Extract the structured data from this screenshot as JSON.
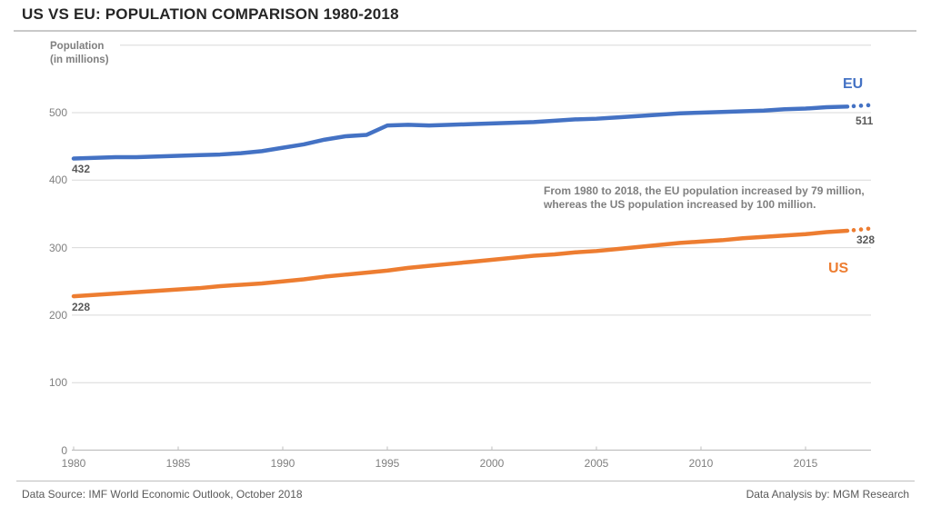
{
  "title": "US VS EU: POPULATION COMPARISON 1980-2018",
  "y_axis": {
    "title_line1": "Population",
    "title_line2": "(in millions)"
  },
  "labels": {
    "eu": "EU",
    "us": "US",
    "eu_start": "432",
    "eu_end": "511",
    "us_start": "228",
    "us_end": "328"
  },
  "annotation": {
    "line1": "From 1980 to 2018, the EU population increased by 79 million,",
    "line2": "whereas the US population increased by 100 million."
  },
  "footer": {
    "left": "Data Source: IMF World Economic Outlook, October 2018",
    "right": "Data Analysis by: MGM Research"
  },
  "colors": {
    "eu": "#4472C4",
    "us": "#ED7D31",
    "grid": "#D9D9D9",
    "axis": "#BFBFBF",
    "tick_label": "#808080",
    "value_label": "#595959",
    "title": "#262626",
    "annotation": "#7F7F7F",
    "footer": "#595959"
  },
  "chart_data": {
    "type": "line",
    "title": "US VS EU: POPULATION COMPARISON 1980-2018",
    "ylabel": "Population (in millions)",
    "x": [
      1980,
      1981,
      1982,
      1983,
      1984,
      1985,
      1986,
      1987,
      1988,
      1989,
      1990,
      1991,
      1992,
      1993,
      1994,
      1995,
      1996,
      1997,
      1998,
      1999,
      2000,
      2001,
      2002,
      2003,
      2004,
      2005,
      2006,
      2007,
      2008,
      2009,
      2010,
      2011,
      2012,
      2013,
      2014,
      2015,
      2016,
      2017,
      2018
    ],
    "x_ticks": [
      1980,
      1985,
      1990,
      1995,
      2000,
      2005,
      2010,
      2015
    ],
    "y_ticks": [
      0,
      100,
      200,
      300,
      400,
      500
    ],
    "ylim": [
      0,
      600
    ],
    "grid": true,
    "legend_position": "end-of-line",
    "series": [
      {
        "name": "EU",
        "color": "#4472C4",
        "start_value": 432,
        "end_value": 511,
        "dotted_from_year": 2017,
        "values": [
          432,
          433,
          434,
          434,
          435,
          436,
          437,
          438,
          440,
          443,
          448,
          453,
          460,
          465,
          467,
          481,
          482,
          481,
          482,
          483,
          484,
          485,
          486,
          488,
          490,
          491,
          493,
          495,
          497,
          499,
          500,
          501,
          502,
          503,
          505,
          506,
          508,
          509,
          511
        ]
      },
      {
        "name": "US",
        "color": "#ED7D31",
        "start_value": 228,
        "end_value": 328,
        "dotted_from_year": 2017,
        "values": [
          228,
          230,
          232,
          234,
          236,
          238,
          240,
          243,
          245,
          247,
          250,
          253,
          257,
          260,
          263,
          266,
          270,
          273,
          276,
          279,
          282,
          285,
          288,
          290,
          293,
          295,
          298,
          301,
          304,
          307,
          309,
          311,
          314,
          316,
          318,
          320,
          323,
          325,
          328
        ]
      }
    ]
  }
}
